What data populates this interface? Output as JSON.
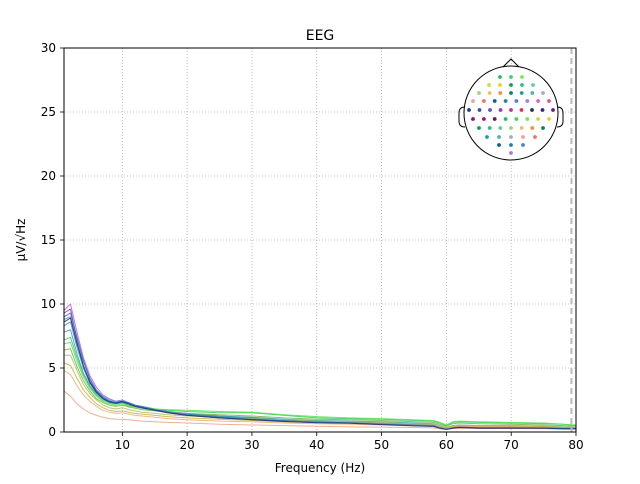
{
  "chart_data": {
    "type": "line",
    "title": "EEG",
    "xlabel": "Frequency (Hz)",
    "ylabel": "µV/√Hz",
    "xlim": [
      1,
      80
    ],
    "ylim": [
      0,
      30
    ],
    "xticks": [
      10,
      20,
      30,
      40,
      50,
      60,
      70,
      80
    ],
    "yticks": [
      0,
      5,
      10,
      15,
      20,
      25,
      30
    ],
    "xtick_labels": [
      "10",
      "20",
      "30",
      "40",
      "50",
      "60",
      "70",
      "80"
    ],
    "ytick_labels": [
      "0",
      "5",
      "10",
      "15",
      "20",
      "25",
      "30"
    ],
    "grid": true,
    "cutoff_line": {
      "x": 79.3,
      "style": "dashed",
      "color": "#bbbbbb"
    },
    "line_noise_dip_hz": 60,
    "x_samples": [
      1,
      2,
      3,
      4,
      5,
      6,
      7,
      8,
      9,
      10,
      11,
      12,
      13,
      15,
      17,
      20,
      25,
      30,
      35,
      40,
      45,
      50,
      55,
      58,
      59,
      60,
      61,
      62,
      65,
      70,
      75,
      78,
      80
    ],
    "series": [
      {
        "color": "#9b2bb0",
        "values": [
          9.3,
          9.6,
          7.2,
          5.0,
          3.8,
          3.1,
          2.7,
          2.4,
          2.3,
          2.4,
          2.2,
          2.0,
          1.9,
          1.7,
          1.5,
          1.3,
          1.1,
          1.0,
          0.85,
          0.75,
          0.7,
          0.6,
          0.5,
          0.45,
          0.3,
          0.2,
          0.3,
          0.35,
          0.3,
          0.3,
          0.3,
          0.25,
          0.25
        ]
      },
      {
        "color": "#b060d8",
        "values": [
          9.5,
          10.0,
          7.8,
          5.8,
          4.4,
          3.5,
          2.9,
          2.6,
          2.4,
          2.4,
          2.3,
          2.1,
          2.0,
          1.8,
          1.6,
          1.4,
          1.2,
          1.05,
          0.9,
          0.8,
          0.75,
          0.65,
          0.55,
          0.5,
          0.35,
          0.25,
          0.35,
          0.4,
          0.35,
          0.35,
          0.35,
          0.3,
          0.3
        ]
      },
      {
        "color": "#6a7fe0",
        "values": [
          8.8,
          9.0,
          7.0,
          5.5,
          4.2,
          3.3,
          2.8,
          2.5,
          2.4,
          2.5,
          2.3,
          2.1,
          2.0,
          1.8,
          1.6,
          1.45,
          1.25,
          1.1,
          0.95,
          0.85,
          0.8,
          0.7,
          0.6,
          0.55,
          0.4,
          0.3,
          0.4,
          0.45,
          0.4,
          0.4,
          0.4,
          0.35,
          0.3
        ]
      },
      {
        "color": "#3f8fd0",
        "values": [
          8.3,
          8.6,
          6.6,
          5.0,
          3.9,
          3.2,
          2.7,
          2.4,
          2.3,
          2.4,
          2.2,
          2.0,
          1.9,
          1.75,
          1.6,
          1.4,
          1.2,
          1.05,
          0.9,
          0.8,
          0.75,
          0.65,
          0.55,
          0.5,
          0.35,
          0.25,
          0.35,
          0.4,
          0.35,
          0.35,
          0.35,
          0.3,
          0.3
        ]
      },
      {
        "color": "#2aa8a0",
        "values": [
          7.8,
          8.0,
          6.1,
          4.6,
          3.6,
          3.0,
          2.6,
          2.3,
          2.2,
          2.3,
          2.1,
          1.95,
          1.85,
          1.7,
          1.55,
          1.4,
          1.25,
          1.15,
          1.0,
          0.9,
          0.85,
          0.8,
          0.7,
          0.65,
          0.5,
          0.35,
          0.5,
          0.55,
          0.5,
          0.5,
          0.45,
          0.4,
          0.35
        ]
      },
      {
        "color": "#2ecc55",
        "values": [
          7.2,
          7.4,
          5.8,
          4.5,
          3.5,
          2.9,
          2.5,
          2.3,
          2.2,
          2.3,
          2.1,
          2.0,
          1.9,
          1.8,
          1.7,
          1.6,
          1.5,
          1.5,
          1.3,
          1.1,
          1.05,
          1.0,
          0.9,
          0.85,
          0.7,
          0.5,
          0.75,
          0.8,
          0.75,
          0.7,
          0.65,
          0.6,
          0.5
        ]
      },
      {
        "color": "#55e055",
        "values": [
          6.9,
          7.0,
          5.5,
          4.3,
          3.4,
          2.8,
          2.4,
          2.2,
          2.1,
          2.2,
          2.0,
          1.95,
          1.9,
          1.8,
          1.75,
          1.7,
          1.6,
          1.55,
          1.35,
          1.2,
          1.1,
          1.05,
          0.95,
          0.9,
          0.75,
          0.55,
          0.8,
          0.85,
          0.8,
          0.75,
          0.7,
          0.6,
          0.55
        ]
      },
      {
        "color": "#7ab04a",
        "values": [
          6.4,
          6.5,
          5.1,
          4.0,
          3.2,
          2.6,
          2.3,
          2.1,
          2.0,
          2.1,
          1.95,
          1.85,
          1.75,
          1.65,
          1.55,
          1.45,
          1.35,
          1.25,
          1.1,
          1.0,
          0.95,
          0.9,
          0.8,
          0.75,
          0.6,
          0.45,
          0.65,
          0.7,
          0.65,
          0.6,
          0.55,
          0.5,
          0.45
        ]
      },
      {
        "color": "#a8c060",
        "values": [
          6.0,
          6.0,
          4.8,
          3.7,
          3.0,
          2.5,
          2.1,
          1.9,
          1.8,
          1.9,
          1.75,
          1.65,
          1.55,
          1.45,
          1.35,
          1.25,
          1.15,
          1.05,
          0.95,
          0.85,
          0.8,
          0.75,
          0.65,
          0.6,
          0.5,
          0.35,
          0.5,
          0.55,
          0.5,
          0.5,
          0.45,
          0.4,
          0.35
        ]
      },
      {
        "color": "#c8b040",
        "values": [
          5.4,
          5.2,
          4.2,
          3.3,
          2.7,
          2.2,
          1.9,
          1.7,
          1.6,
          1.65,
          1.55,
          1.45,
          1.4,
          1.3,
          1.2,
          1.1,
          1.0,
          0.9,
          0.8,
          0.75,
          0.7,
          0.65,
          0.55,
          0.5,
          0.4,
          0.3,
          0.45,
          0.5,
          0.45,
          0.45,
          0.4,
          0.35,
          0.3
        ]
      },
      {
        "color": "#e8b070",
        "values": [
          4.8,
          4.5,
          3.6,
          2.9,
          2.4,
          2.0,
          1.7,
          1.55,
          1.45,
          1.5,
          1.4,
          1.3,
          1.25,
          1.15,
          1.05,
          0.95,
          0.85,
          0.8,
          0.7,
          0.65,
          0.6,
          0.55,
          0.5,
          0.45,
          0.35,
          0.25,
          0.4,
          0.45,
          0.4,
          0.4,
          0.35,
          0.3,
          0.3
        ]
      },
      {
        "color": "#f0a080",
        "values": [
          3.2,
          2.8,
          2.2,
          1.8,
          1.5,
          1.3,
          1.15,
          1.05,
          1.0,
          1.0,
          0.95,
          0.9,
          0.85,
          0.8,
          0.75,
          0.7,
          0.6,
          0.55,
          0.5,
          0.45,
          0.4,
          0.38,
          0.35,
          0.32,
          0.25,
          0.2,
          0.28,
          0.3,
          0.28,
          0.27,
          0.25,
          0.22,
          0.2
        ]
      },
      {
        "color": "#2e6ec0",
        "values": [
          9.0,
          9.3,
          7.4,
          5.6,
          4.1,
          3.2,
          2.7,
          2.4,
          2.3,
          2.4,
          2.25,
          2.05,
          1.95,
          1.75,
          1.55,
          1.35,
          1.15,
          1.0,
          0.88,
          0.78,
          0.72,
          0.62,
          0.52,
          0.48,
          0.33,
          0.22,
          0.33,
          0.38,
          0.33,
          0.33,
          0.32,
          0.28,
          0.27
        ]
      },
      {
        "color": "#1e2a70",
        "values": [
          8.6,
          8.9,
          6.9,
          5.2,
          3.9,
          3.1,
          2.6,
          2.35,
          2.25,
          2.35,
          2.2,
          2.0,
          1.9,
          1.7,
          1.5,
          1.3,
          1.1,
          0.95,
          0.82,
          0.72,
          0.68,
          0.58,
          0.48,
          0.44,
          0.3,
          0.2,
          0.3,
          0.35,
          0.3,
          0.3,
          0.3,
          0.26,
          0.25
        ]
      }
    ],
    "sensor_inset": {
      "type": "topomap-sensor-layout",
      "dot_colors": [
        "#20c060",
        "#40d070",
        "#80e060",
        "#c0e040",
        "#f0d030",
        "#10a050",
        "#30c080",
        "#60d0a0",
        "#a0d080",
        "#f0c060",
        "#f09040",
        "#108060",
        "#20a0a0",
        "#50b0c0",
        "#a0b0c0",
        "#f0a0a0",
        "#f07070",
        "#106080",
        "#2080b0",
        "#5080d0",
        "#a080d0",
        "#e060c0",
        "#f05080",
        "#204070",
        "#3050a0",
        "#6050c0",
        "#9040b0",
        "#c03090",
        "#e03060",
        "#203060",
        "#402080",
        "#602090",
        "#901080",
        "#b01070",
        "#701060"
      ]
    }
  }
}
